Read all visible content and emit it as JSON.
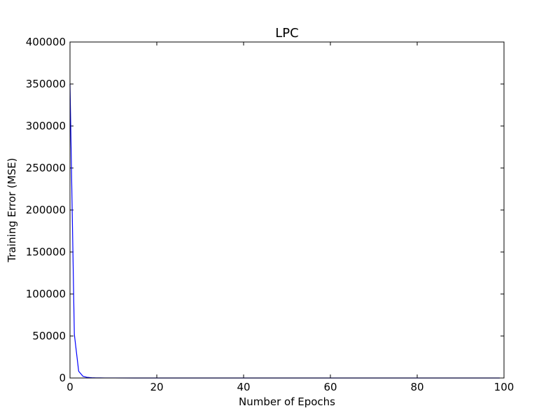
{
  "chart_data": {
    "type": "line",
    "title": "LPC",
    "xlabel": "Number of Epochs",
    "ylabel": "Training Error (MSE)",
    "xlim": [
      0,
      100
    ],
    "ylim": [
      0,
      400000
    ],
    "x_ticks": [
      0,
      20,
      40,
      60,
      80,
      100
    ],
    "y_ticks": [
      0,
      50000,
      100000,
      150000,
      200000,
      250000,
      300000,
      350000,
      400000
    ],
    "x_tick_labels": [
      "0",
      "20",
      "40",
      "60",
      "80",
      "100"
    ],
    "y_tick_labels": [
      "0",
      "50000",
      "100000",
      "150000",
      "200000",
      "250000",
      "300000",
      "350000",
      "400000"
    ],
    "grid": false,
    "legend": "none",
    "series": [
      {
        "color": "#0000ff",
        "x": [
          0,
          1,
          2,
          3,
          4,
          5,
          6,
          7,
          8,
          10,
          15,
          20,
          30,
          40,
          50,
          60,
          70,
          80,
          90,
          99
        ],
        "y": [
          350000,
          52000,
          8000,
          2000,
          700,
          300,
          150,
          80,
          50,
          30,
          15,
          10,
          8,
          6,
          5,
          4,
          4,
          3,
          3,
          3
        ]
      }
    ]
  }
}
